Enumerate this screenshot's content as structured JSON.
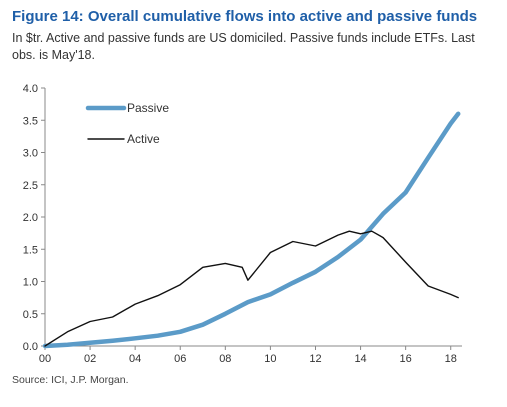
{
  "figure": {
    "title": "Figure 14: Overall cumulative flows into active and passive funds",
    "subtitle": "In $tr. Active and passive funds are US domiciled. Passive funds include ETFs. Last obs. is May'18.",
    "source": "Source: ICI, J.P. Morgan."
  },
  "colors": {
    "passive": "#5b9bc8",
    "active": "#111111",
    "title": "#1f5fa8"
  },
  "chart_data": {
    "type": "line",
    "xlim": [
      2000,
      2018.5
    ],
    "ylim": [
      0,
      4.0
    ],
    "x_ticks": [
      2000,
      2002,
      2004,
      2006,
      2008,
      2010,
      2012,
      2014,
      2016,
      2018
    ],
    "x_tick_labels": [
      "00",
      "02",
      "04",
      "06",
      "08",
      "10",
      "12",
      "14",
      "16",
      "18"
    ],
    "y_ticks": [
      0,
      0.5,
      1.0,
      1.5,
      2.0,
      2.5,
      3.0,
      3.5,
      4.0
    ],
    "y_tick_labels": [
      "0.0",
      "0.5",
      "1.0",
      "1.5",
      "2.0",
      "2.5",
      "3.0",
      "3.5",
      "4.0"
    ],
    "grid": false,
    "legend_position": "top-left",
    "series": [
      {
        "name": "Passive",
        "x": [
          2000,
          2001,
          2002,
          2003,
          2004,
          2005,
          2006,
          2007,
          2008,
          2009,
          2010,
          2011,
          2012,
          2013,
          2014,
          2015,
          2016,
          2017,
          2018,
          2018.33
        ],
        "y": [
          0.0,
          0.02,
          0.05,
          0.08,
          0.12,
          0.16,
          0.22,
          0.33,
          0.5,
          0.68,
          0.8,
          0.98,
          1.15,
          1.38,
          1.65,
          2.05,
          2.38,
          2.92,
          3.45,
          3.6
        ]
      },
      {
        "name": "Active",
        "x": [
          2000,
          2001,
          2002,
          2003,
          2004,
          2005,
          2006,
          2007,
          2008,
          2008.75,
          2009,
          2010,
          2011,
          2012,
          2013,
          2013.5,
          2014,
          2014.5,
          2015,
          2016,
          2017,
          2018,
          2018.33
        ],
        "y": [
          0.0,
          0.22,
          0.38,
          0.45,
          0.65,
          0.78,
          0.95,
          1.22,
          1.28,
          1.22,
          1.02,
          1.45,
          1.62,
          1.55,
          1.72,
          1.78,
          1.74,
          1.78,
          1.68,
          1.3,
          0.93,
          0.8,
          0.75
        ]
      }
    ]
  }
}
